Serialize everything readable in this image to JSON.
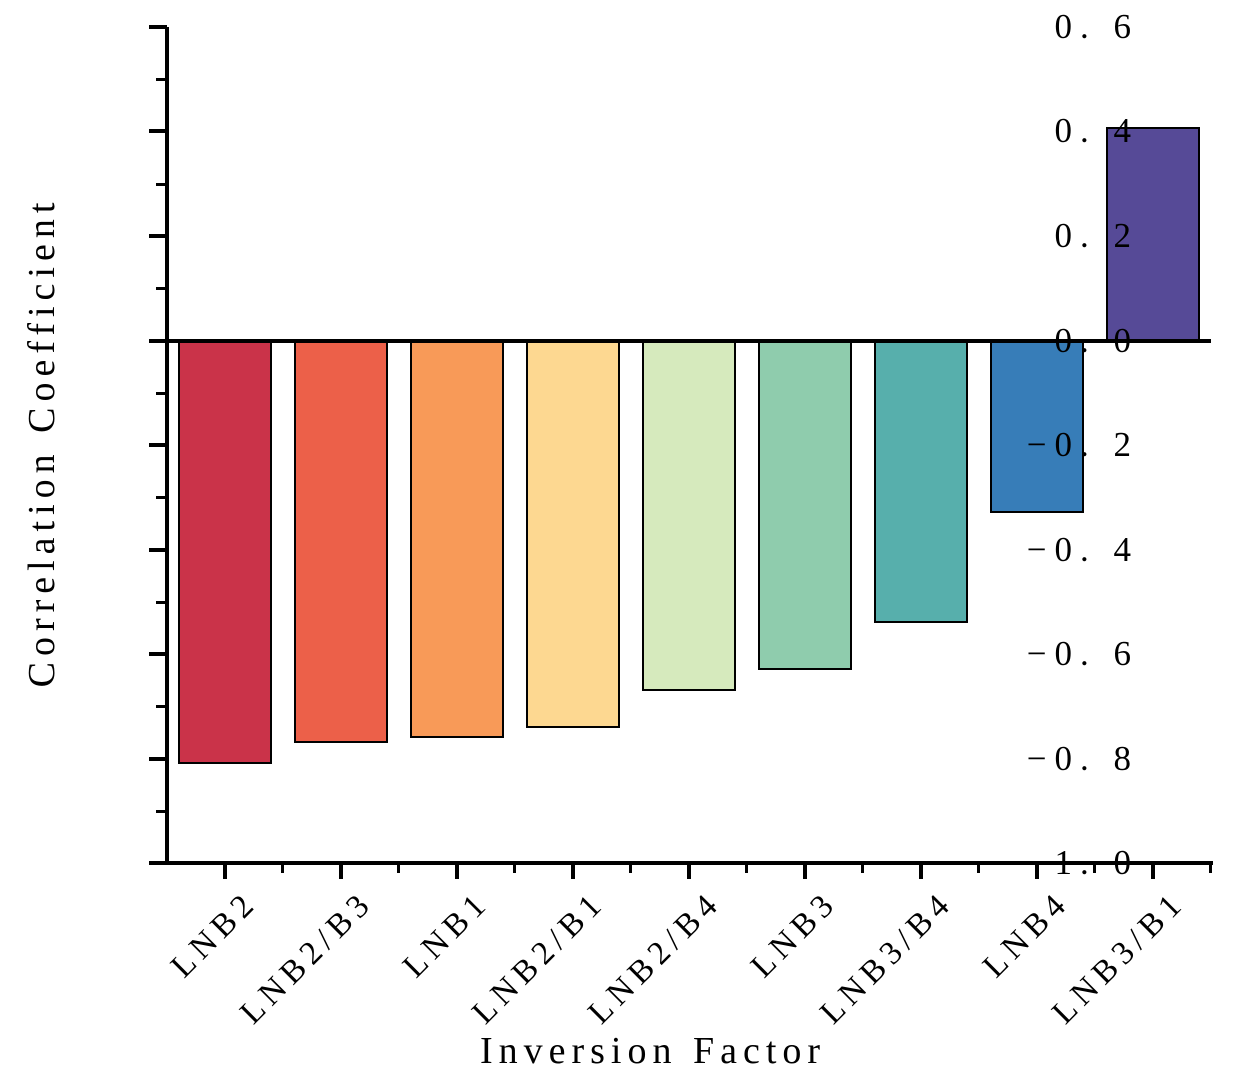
{
  "figure": {
    "background_color": "#ffffff",
    "text_color": "#000000",
    "axis_color": "#000000"
  },
  "chart_data": {
    "type": "bar",
    "title": "",
    "xlabel": "Inversion Factor",
    "ylabel": "Correlation Coefficient",
    "categories": [
      "LNB2",
      "LNB2/B3",
      "LNB1",
      "LNB2/B1",
      "LNB2/B4",
      "LNB3",
      "LNB3/B4",
      "LNB4",
      "LNB3/B1"
    ],
    "values": [
      -0.81,
      -0.77,
      -0.76,
      -0.74,
      -0.67,
      -0.63,
      -0.54,
      -0.33,
      0.41
    ],
    "bar_colors": [
      "#ca3349",
      "#ec6049",
      "#f89a58",
      "#fdd891",
      "#d6eabd",
      "#8fccad",
      "#57afac",
      "#377db8",
      "#564a97"
    ],
    "bar_edge_color": "#000000",
    "ylim": [
      -1.0,
      0.6
    ],
    "yticks_major": [
      {
        "v": 0.6,
        "label": "0. 6"
      },
      {
        "v": 0.4,
        "label": "0. 4"
      },
      {
        "v": 0.2,
        "label": "0. 2"
      },
      {
        "v": 0.0,
        "label": "0. 0"
      },
      {
        "v": -0.2,
        "label": "−0. 2"
      },
      {
        "v": -0.4,
        "label": "−0. 4"
      },
      {
        "v": -0.6,
        "label": "−0. 6"
      },
      {
        "v": -0.8,
        "label": "−0. 8"
      },
      {
        "v": -1.0,
        "label": "−1. 0"
      }
    ],
    "yticks_minor": [
      0.5,
      0.3,
      0.1,
      -0.1,
      -0.3,
      -0.5,
      -0.7,
      -0.9
    ],
    "grid": false,
    "legend": null,
    "zero_line": true
  }
}
